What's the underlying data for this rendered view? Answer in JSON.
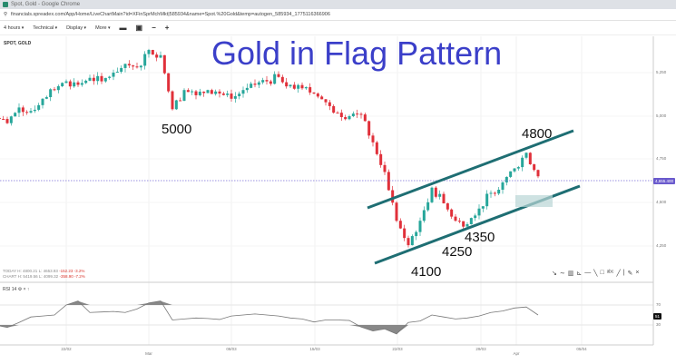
{
  "window": {
    "title": "Spot, Gold - Google Chrome",
    "url": "financials.spreadex.com/App/Home/LiveChartMain?id=XFinSprMchMkt|585934&name=Spot.%20Gold&temp=autogen_585934_1775116366906"
  },
  "toolbar": {
    "interval": "4 hours",
    "technical": "Technical",
    "display": "Display",
    "more": "More",
    "icons": [
      "folder-icon",
      "save-icon",
      "zoom-out-icon",
      "zoom-in-icon"
    ]
  },
  "symbol": "SPOT, GOLD",
  "annotations": {
    "title": "Gold in Flag Pattern",
    "labels": [
      "5000",
      "4800",
      "4350",
      "4250",
      "4100"
    ],
    "line_color": "#1e6e73"
  },
  "stats": {
    "today_label": "TODAY",
    "today_h": "H: 4800.21",
    "today_l": "L: 4653.93",
    "today_chg": "-152.23",
    "today_pct": "-3.2%",
    "chart_label": "CHART",
    "chart_h": "H: 5419.56",
    "chart_l": "L: 4099.32",
    "chart_chg": "-358.90",
    "chart_pct": "-7.2%"
  },
  "rsi": {
    "label": "RSI 14",
    "current": "51"
  },
  "price_axis": {
    "ticks": [
      "5,250",
      "5,000",
      "4,750",
      "4,500",
      "4,250"
    ],
    "current": "4,655.400"
  },
  "rsi_axis": {
    "ticks": [
      "70",
      "30"
    ]
  },
  "date_axis": [
    "22/02",
    "Mar",
    "08/03",
    "15/03",
    "22/03",
    "29/03",
    "Apr",
    "05/04"
  ],
  "colors": {
    "up": "#26a69a",
    "down": "#e0303a",
    "title": "#3b3fc9",
    "price_line": "#7b6fd6"
  },
  "chart_data": {
    "type": "candlestick",
    "dates": [
      "16/02",
      "17/02",
      "18/02",
      "19/02",
      "20/02",
      "21/02",
      "22/02",
      "23/02",
      "24/02",
      "25/02",
      "26/02",
      "27/02",
      "28/02",
      "01/03",
      "02/03",
      "03/03",
      "04/03",
      "05/03",
      "06/03",
      "07/03",
      "08/03",
      "09/03",
      "10/03",
      "11/03",
      "12/03",
      "13/03",
      "14/03",
      "15/03",
      "16/03",
      "17/03",
      "18/03",
      "19/03",
      "20/03",
      "21/03",
      "22/03",
      "23/03",
      "24/03",
      "25/03",
      "26/03",
      "27/03",
      "28/03",
      "29/03",
      "30/03",
      "31/03",
      "01/04",
      "02/04",
      "03/04"
    ],
    "close": [
      4990,
      4960,
      5050,
      5030,
      5100,
      5150,
      5200,
      5180,
      5220,
      5200,
      5250,
      5300,
      5280,
      5380,
      5350,
      5040,
      5150,
      5120,
      5150,
      5130,
      5100,
      5150,
      5180,
      5200,
      5225,
      5180,
      5160,
      5130,
      5080,
      5020,
      5000,
      5010,
      4850,
      4680,
      4400,
      4260,
      4400,
      4590,
      4500,
      4400,
      4380,
      4470,
      4560,
      4620,
      4700,
      4790,
      4655
    ],
    "rsi": [
      30,
      25,
      35,
      46,
      48,
      50,
      70,
      78,
      55,
      56,
      57,
      55,
      62,
      74,
      78,
      40,
      42,
      44,
      43,
      41,
      48,
      50,
      52,
      50,
      48,
      44,
      42,
      36,
      40,
      40,
      39,
      26,
      18,
      22,
      12,
      35,
      38,
      50,
      46,
      42,
      44,
      48,
      55,
      58,
      64,
      66,
      50
    ],
    "y_range": [
      4100,
      5420
    ],
    "grid": true
  }
}
